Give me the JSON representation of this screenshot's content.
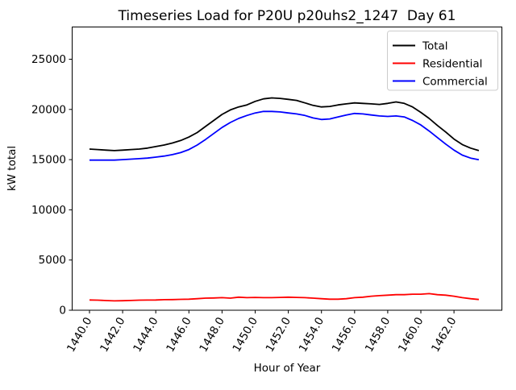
{
  "chart_data": {
    "type": "line",
    "title": "Timeseries Load for P20U p20uhs2_1247  Day 61",
    "xlabel": "Hour of Year",
    "ylabel": "kW total",
    "grid": false,
    "legend_position": "upper right",
    "x_tick_rotation": 60,
    "xlim": [
      1439.0,
      1464.6
    ],
    "ylim": [
      0,
      28250
    ],
    "x_ticks": {
      "values": [
        1440,
        1442,
        1444,
        1446,
        1448,
        1450,
        1452,
        1454,
        1456,
        1458,
        1460,
        1462
      ],
      "labels": [
        "1440.0",
        "1442.0",
        "1444.0",
        "1446.0",
        "1448.0",
        "1450.0",
        "1452.0",
        "1454.0",
        "1456.0",
        "1458.0",
        "1460.0",
        "1462.0"
      ]
    },
    "y_ticks": {
      "values": [
        0,
        5000,
        10000,
        15000,
        20000,
        25000
      ],
      "labels": [
        "0",
        "5000",
        "10000",
        "15000",
        "20000",
        "25000"
      ]
    },
    "x": [
      1440.0,
      1440.5,
      1441.0,
      1441.5,
      1442.0,
      1442.5,
      1443.0,
      1443.5,
      1444.0,
      1444.5,
      1445.0,
      1445.5,
      1446.0,
      1446.5,
      1447.0,
      1447.5,
      1448.0,
      1448.5,
      1449.0,
      1449.5,
      1450.0,
      1450.5,
      1451.0,
      1451.5,
      1452.0,
      1452.5,
      1453.0,
      1453.5,
      1454.0,
      1454.5,
      1455.0,
      1455.5,
      1456.0,
      1456.5,
      1457.0,
      1457.5,
      1458.0,
      1458.5,
      1459.0,
      1459.5,
      1460.0,
      1460.5,
      1461.0,
      1461.5,
      1462.0,
      1462.5,
      1463.0,
      1463.5
    ],
    "series": [
      {
        "name": "Total",
        "color": "#000000",
        "values": [
          16050,
          16000,
          15950,
          15900,
          15950,
          16000,
          16050,
          16150,
          16300,
          16450,
          16650,
          16900,
          17250,
          17700,
          18300,
          18900,
          19500,
          19950,
          20250,
          20450,
          20800,
          21050,
          21150,
          21100,
          21000,
          20900,
          20650,
          20400,
          20250,
          20300,
          20450,
          20550,
          20650,
          20600,
          20550,
          20500,
          20600,
          20750,
          20600,
          20250,
          19700,
          19100,
          18400,
          17750,
          17050,
          16500,
          16150,
          15900
        ]
      },
      {
        "name": "Residential",
        "color": "#ff0000",
        "values": [
          1020,
          1000,
          960,
          930,
          950,
          970,
          1000,
          1010,
          1020,
          1050,
          1060,
          1080,
          1100,
          1150,
          1200,
          1220,
          1250,
          1200,
          1300,
          1250,
          1280,
          1250,
          1250,
          1280,
          1300,
          1280,
          1250,
          1200,
          1150,
          1100,
          1100,
          1150,
          1250,
          1300,
          1400,
          1450,
          1500,
          1550,
          1550,
          1600,
          1600,
          1650,
          1550,
          1500,
          1400,
          1250,
          1150,
          1070
        ]
      },
      {
        "name": "Commercial",
        "color": "#0000ff",
        "values": [
          14950,
          14950,
          14950,
          14950,
          15000,
          15050,
          15100,
          15150,
          15250,
          15350,
          15500,
          15700,
          16000,
          16450,
          17000,
          17600,
          18200,
          18700,
          19100,
          19400,
          19650,
          19800,
          19800,
          19750,
          19650,
          19550,
          19400,
          19150,
          19000,
          19050,
          19250,
          19450,
          19600,
          19550,
          19450,
          19350,
          19300,
          19350,
          19250,
          18900,
          18450,
          17850,
          17200,
          16550,
          15950,
          15450,
          15150,
          14980
        ]
      }
    ]
  }
}
